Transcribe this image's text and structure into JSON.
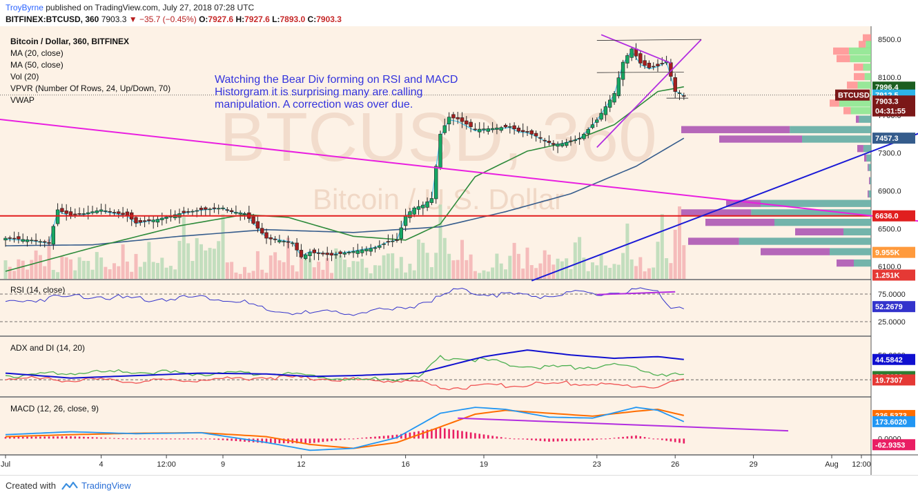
{
  "header": {
    "author": "TroyByrne",
    "published": "published on TradingView.com, July 27, 2018 07:28 UTC",
    "symbol": "BITFINEX:BTCUSD, 360",
    "last": "7903.3",
    "change": "−35.7 (−0.45%)",
    "o_label": "O:",
    "o": "7927.6",
    "h_label": "H:",
    "h": "7927.6",
    "l_label": "L:",
    "l": "7893.0",
    "c_label": "C:",
    "c": "7903.3"
  },
  "legend": [
    "Bitcoin / Dollar, 360, BITFINEX",
    "MA (20, close)",
    "MA (50, close)",
    "Vol (20)",
    "VPVR (Number Of Rows, 24, Up/Down, 70)",
    "VWAP"
  ],
  "annotation": [
    "Watching the Bear Div forming on RSI and MACD",
    "Historgram it is surprising many are calling",
    "manipulation. A correction was over due."
  ],
  "watermark": {
    "line1": "BTCUSD, 360",
    "line2": "Bitcoin / U.S. Dollar"
  },
  "panes": {
    "rsi": "RSI (14, close)",
    "adx": "ADX and DI (14, 20)",
    "macd": "MACD (12, 26, close, 9)"
  },
  "price_axis": {
    "ticks": [
      "8500.0",
      "8100.0",
      "7700.0",
      "7300.0",
      "6900.0",
      "6500.0",
      "6100.0"
    ],
    "tick_values": [
      8500,
      8100,
      7700,
      7300,
      6900,
      6500,
      6100
    ],
    "labels": [
      {
        "text": "7996.4",
        "value": 7996.4,
        "bg": "#1b5e20"
      },
      {
        "text": "BTCUSD",
        "value": 7912.5,
        "bg": "#7b1818",
        "side": "left"
      },
      {
        "text": "7912.5",
        "value": 7912.5,
        "bg": "#2db3e8"
      },
      {
        "text": "7903.3",
        "value": 7850,
        "bg": "#7b1818"
      },
      {
        "text": "04:31:55",
        "value": 7745,
        "bg": "#7b1818"
      },
      {
        "text": "7457.3",
        "value": 7457.3,
        "bg": "#355c8c"
      },
      {
        "text": "6636.0",
        "value": 6636,
        "bg": "#e01f1f"
      },
      {
        "text": "9.955K",
        "value": 6250,
        "bg": "#ff9a3c"
      },
      {
        "text": "1.251K",
        "value": 6010,
        "bg": "#e53935"
      }
    ]
  },
  "rsi_axis": {
    "ticks": [
      "75.0000",
      "25.0000"
    ],
    "tick_values": [
      75,
      25
    ],
    "label": "52.2679",
    "label_value": 52.27
  },
  "adx_axis": {
    "ticks": [
      "50.0000"
    ],
    "tick_values": [
      50
    ],
    "labels": [
      {
        "text": "44.5842",
        "value": 44.58,
        "bg": "#1010d0"
      },
      {
        "text": "23.8133",
        "value": 23.81,
        "bg": "#2e7d32"
      },
      {
        "text": "19.7307",
        "value": 19.73,
        "bg": "#e53935"
      }
    ]
  },
  "macd_axis": {
    "ticks": [
      "0.0000"
    ],
    "tick_values": [
      0
    ],
    "labels": [
      {
        "text": "236.5373",
        "value": 236.5,
        "bg": "#ff6d00"
      },
      {
        "text": "173.6020",
        "value": 173.6,
        "bg": "#2196f3"
      },
      {
        "text": "-62.9353",
        "value": -62.9,
        "bg": "#e91e63"
      }
    ]
  },
  "time_axis": {
    "labels": [
      "Jul",
      "4",
      "12:00",
      "9",
      "12",
      "16",
      "19",
      "23",
      "26",
      "29",
      "Aug",
      "12:00"
    ],
    "bar_index": [
      0,
      22,
      37,
      50,
      68,
      92,
      110,
      136,
      154,
      172,
      190,
      206
    ]
  },
  "colors": {
    "background": "#fdf2e6",
    "up": "#16a864",
    "down": "#a41f1f",
    "ma20": "#2d8a3a",
    "ma50": "#355c8c",
    "vwap": "#2ec2ee",
    "support": "#e21d1d",
    "downtrend": "#e91ee0",
    "uptrend": "#1a1ad6",
    "wedge": "#b22de0",
    "rsi": "#3333cc",
    "adx": "#1010d0",
    "di_plus": "#4caf50",
    "di_minus": "#f05454",
    "macd": "#2196f3",
    "signal": "#ff6d00",
    "hist": "#e91e63"
  },
  "chart_data": {
    "type": "candlestick",
    "title": "Bitcoin / Dollar, 360, BITFINEX",
    "timeframe": "360",
    "start_date": "2018-07-01",
    "bars_per_day": 4,
    "ohlc_close_keypoints": {
      "bar_index": [
        0,
        6,
        10,
        12,
        15,
        18,
        22,
        28,
        30,
        35,
        40,
        45,
        50,
        52,
        55,
        60,
        66,
        68,
        70,
        75,
        80,
        85,
        88,
        90,
        92,
        94,
        96,
        98,
        100,
        102,
        104,
        108,
        112,
        116,
        118,
        120,
        122,
        124,
        126,
        128,
        132,
        136,
        138,
        140,
        142,
        144,
        146,
        148,
        150,
        152,
        154,
        155,
        156
      ],
      "close": [
        6400,
        6380,
        6350,
        6700,
        6640,
        6660,
        6700,
        6640,
        6560,
        6600,
        6660,
        6700,
        6720,
        6680,
        6660,
        6400,
        6350,
        6200,
        6250,
        6220,
        6260,
        6300,
        6360,
        6380,
        6640,
        6720,
        6750,
        6820,
        7500,
        7680,
        7660,
        7550,
        7560,
        7580,
        7530,
        7520,
        7480,
        7430,
        7390,
        7400,
        7450,
        7650,
        7790,
        7930,
        8260,
        8400,
        8250,
        8200,
        8220,
        8270,
        7950,
        7935,
        7903
      ]
    },
    "ma20_keypoints": {
      "bar_index": [
        0,
        20,
        40,
        55,
        65,
        80,
        92,
        100,
        108,
        120,
        130,
        140,
        150,
        156
      ],
      "value": [
        6050,
        6300,
        6530,
        6650,
        6620,
        6420,
        6380,
        6550,
        7050,
        7320,
        7420,
        7600,
        7950,
        8000
      ]
    },
    "ma50_keypoints": {
      "bar_index": [
        0,
        20,
        40,
        60,
        80,
        100,
        115,
        130,
        145,
        156
      ],
      "value": [
        6320,
        6330,
        6420,
        6490,
        6460,
        6520,
        6680,
        6870,
        7160,
        7457
      ]
    },
    "volume_k": [
      3,
      2,
      2,
      5,
      3,
      2,
      4,
      6,
      5,
      3,
      8,
      3,
      2,
      4,
      6,
      5,
      3,
      5,
      3,
      4,
      2,
      6,
      7,
      4,
      2,
      5,
      3,
      6,
      4,
      2,
      4,
      3,
      6,
      9,
      5,
      3,
      4,
      2,
      3,
      2,
      8,
      13,
      6,
      4,
      9,
      12,
      8,
      5,
      6,
      7,
      13,
      4,
      4,
      2,
      1
    ],
    "levels": {
      "support": 6636,
      "vwap_last": 7912.5
    },
    "rsi_keypoints": {
      "bar_index": [
        0,
        10,
        20,
        30,
        45,
        50,
        55,
        60,
        70,
        80,
        90,
        96,
        100,
        104,
        108,
        115,
        125,
        131,
        136,
        140,
        146,
        150,
        153,
        156
      ],
      "value": [
        60,
        68,
        73,
        65,
        70,
        66,
        60,
        44,
        40,
        42,
        46,
        60,
        71,
        82,
        78,
        74,
        72,
        76,
        74,
        78,
        81,
        75,
        55,
        52.27
      ]
    },
    "adx_keypoints": {
      "bar_index": [
        0,
        15,
        30,
        45,
        60,
        70,
        80,
        95,
        110,
        120,
        130,
        140,
        150,
        156
      ],
      "value": [
        28,
        22,
        25,
        28,
        27,
        24,
        25,
        28,
        48,
        56,
        50,
        46,
        48,
        44.58
      ]
    },
    "di_plus_keypoints": {
      "bar_index": [
        0,
        15,
        30,
        45,
        60,
        70,
        80,
        95,
        100,
        110,
        120,
        130,
        140,
        150,
        156
      ],
      "value": [
        25,
        28,
        30,
        27,
        28,
        25,
        20,
        22,
        47,
        44,
        36,
        35,
        38,
        28,
        23.81
      ]
    },
    "di_minus_keypoints": {
      "bar_index": [
        0,
        15,
        30,
        45,
        60,
        70,
        80,
        95,
        100,
        110,
        120,
        130,
        140,
        150,
        156
      ],
      "value": [
        22,
        20,
        18,
        20,
        23,
        22,
        20,
        18,
        10,
        12,
        14,
        16,
        13,
        12,
        19.73
      ]
    },
    "macd_keypoints": {
      "bar_index": [
        0,
        15,
        30,
        45,
        60,
        70,
        80,
        90,
        100,
        108,
        115,
        125,
        135,
        145,
        150,
        156
      ],
      "value": [
        40,
        70,
        50,
        60,
        -40,
        -120,
        -100,
        10,
        260,
        320,
        300,
        220,
        210,
        320,
        290,
        173.6
      ]
    },
    "signal_keypoints": {
      "bar_index": [
        0,
        15,
        30,
        45,
        60,
        70,
        80,
        90,
        100,
        108,
        115,
        125,
        135,
        145,
        150,
        156
      ],
      "value": [
        20,
        40,
        55,
        60,
        20,
        -60,
        -100,
        -40,
        120,
        250,
        290,
        260,
        230,
        280,
        300,
        236.5
      ]
    },
    "hist_last": -62.9,
    "drawings": {
      "downtrend_line": {
        "from": {
          "bar_index": -20,
          "price": 7750
        },
        "to": {
          "bar_index": 222,
          "price": 6520
        }
      },
      "uptrend_line": {
        "from": {
          "bar_index": 121,
          "price": 5950
        },
        "to": {
          "bar_index": 221,
          "price": 7700
        }
      },
      "support_line": {
        "price": 6636
      },
      "wedge_upper": {
        "from": {
          "bar_index": 137,
          "price": 8550
        },
        "to": {
          "bar_index": 153,
          "price": 8250
        }
      },
      "wedge_lower": {
        "from": {
          "bar_index": 136,
          "price": 7360
        },
        "to": {
          "bar_index": 160,
          "price": 8500
        }
      },
      "rsi_divergence": {
        "from": {
          "bar_index": 136,
          "value": 74
        },
        "to": {
          "bar_index": 154,
          "value": 79
        }
      },
      "macd_divergence": {
        "from": {
          "bar_index": 104,
          "value": 210
        },
        "to": {
          "bar_index": 180,
          "value": 80
        }
      }
    }
  }
}
